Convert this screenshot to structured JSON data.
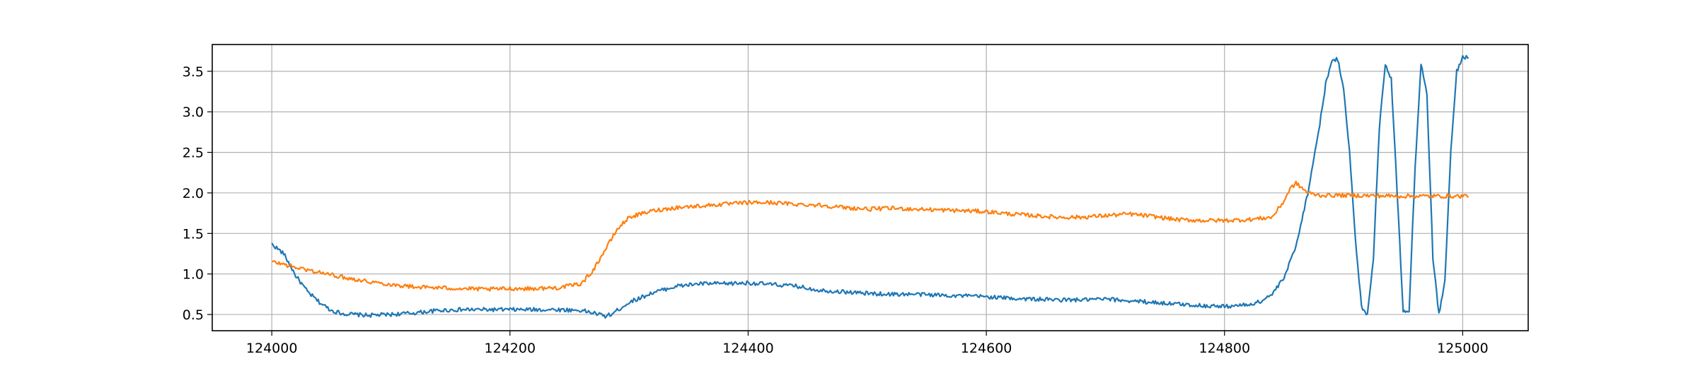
{
  "chart_data": {
    "type": "line",
    "title": "",
    "xlabel": "",
    "ylabel": "",
    "xlim": [
      123950,
      125055
    ],
    "ylim": [
      0.3,
      3.83
    ],
    "grid": true,
    "legend": "none",
    "x_ticks": [
      124000,
      124200,
      124400,
      124600,
      124800,
      125000
    ],
    "x_tick_labels": [
      "124000",
      "124200",
      "124400",
      "124600",
      "124800",
      "125000"
    ],
    "y_ticks": [
      0.5,
      1.0,
      1.5,
      2.0,
      2.5,
      3.0,
      3.5
    ],
    "y_tick_labels": [
      "0.5",
      "1.0",
      "1.5",
      "2.0",
      "2.5",
      "3.0",
      "3.5"
    ],
    "series": [
      {
        "color": "#1f77b4",
        "x": [
          124000,
          124010,
          124020,
          124030,
          124040,
          124050,
          124060,
          124080,
          124100,
          124120,
          124140,
          124160,
          124180,
          124200,
          124220,
          124240,
          124260,
          124270,
          124280,
          124285,
          124290,
          124300,
          124320,
          124340,
          124360,
          124380,
          124400,
          124420,
          124440,
          124460,
          124480,
          124500,
          124520,
          124540,
          124560,
          124580,
          124600,
          124620,
          124640,
          124660,
          124680,
          124700,
          124720,
          124740,
          124760,
          124780,
          124800,
          124820,
          124830,
          124840,
          124850,
          124860,
          124870,
          124880,
          124885,
          124890,
          124895,
          124900,
          124905,
          124910,
          124915,
          124920,
          124925,
          124930,
          124935,
          124940,
          124945,
          124950,
          124955,
          124960,
          124965,
          124970,
          124975,
          124980,
          124985,
          124990,
          124995,
          125000,
          125005
        ],
        "y": [
          1.37,
          1.25,
          0.98,
          0.78,
          0.65,
          0.55,
          0.51,
          0.49,
          0.5,
          0.52,
          0.55,
          0.56,
          0.56,
          0.56,
          0.56,
          0.56,
          0.55,
          0.52,
          0.48,
          0.5,
          0.55,
          0.65,
          0.77,
          0.85,
          0.88,
          0.88,
          0.89,
          0.87,
          0.85,
          0.8,
          0.78,
          0.76,
          0.75,
          0.75,
          0.74,
          0.73,
          0.72,
          0.7,
          0.69,
          0.68,
          0.68,
          0.69,
          0.67,
          0.65,
          0.63,
          0.61,
          0.6,
          0.62,
          0.66,
          0.75,
          0.95,
          1.35,
          2.0,
          2.85,
          3.35,
          3.62,
          3.65,
          3.3,
          2.5,
          1.4,
          0.6,
          0.5,
          1.2,
          2.8,
          3.6,
          3.4,
          2.0,
          0.55,
          0.55,
          2.3,
          3.6,
          3.2,
          1.2,
          0.5,
          0.9,
          2.5,
          3.5,
          3.68,
          3.67
        ]
      },
      {
        "color": "#ff7f0e",
        "x": [
          124000,
          124010,
          124020,
          124040,
          124060,
          124080,
          124100,
          124120,
          124140,
          124160,
          124180,
          124200,
          124220,
          124240,
          124260,
          124270,
          124280,
          124290,
          124300,
          124320,
          124340,
          124360,
          124380,
          124400,
          124420,
          124440,
          124460,
          124480,
          124500,
          124520,
          124540,
          124560,
          124580,
          124600,
          124620,
          124640,
          124660,
          124680,
          124700,
          124720,
          124740,
          124760,
          124780,
          124800,
          124820,
          124840,
          124850,
          124855,
          124860,
          124870,
          124880,
          124900,
          124950,
          125000,
          125005
        ],
        "y": [
          1.15,
          1.12,
          1.08,
          1.02,
          0.96,
          0.91,
          0.87,
          0.84,
          0.83,
          0.82,
          0.81,
          0.82,
          0.82,
          0.83,
          0.88,
          1.05,
          1.3,
          1.55,
          1.7,
          1.78,
          1.82,
          1.84,
          1.86,
          1.88,
          1.88,
          1.86,
          1.85,
          1.82,
          1.8,
          1.81,
          1.8,
          1.79,
          1.78,
          1.77,
          1.74,
          1.72,
          1.7,
          1.7,
          1.72,
          1.74,
          1.71,
          1.67,
          1.66,
          1.66,
          1.67,
          1.7,
          1.9,
          2.05,
          2.12,
          2.0,
          1.97,
          1.97,
          1.96,
          1.96,
          1.97
        ]
      }
    ]
  }
}
